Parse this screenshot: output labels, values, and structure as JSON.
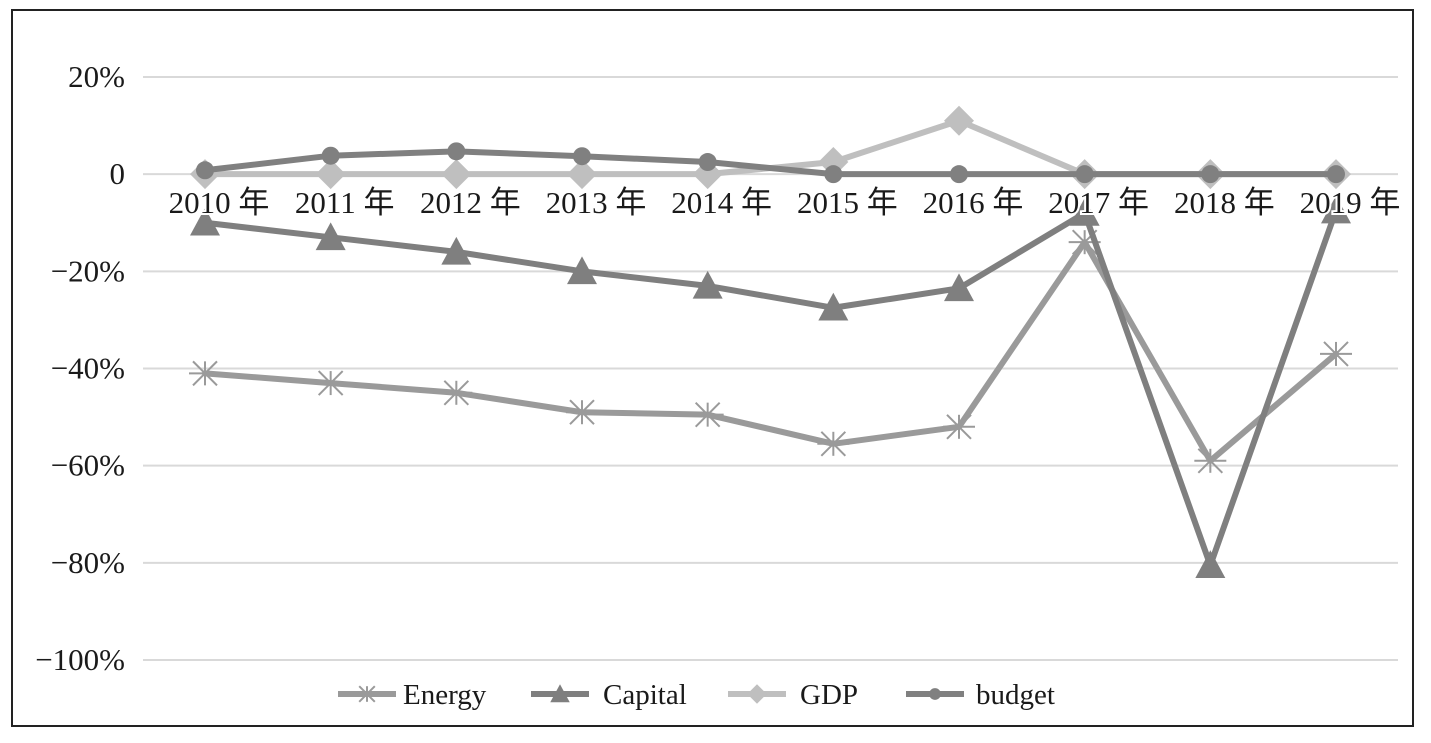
{
  "chart_data": {
    "type": "line",
    "title": "",
    "xlabel": "",
    "ylabel": "",
    "categories": [
      "2010 年",
      "2011 年",
      "2012 年",
      "2013 年",
      "2014 年",
      "2015 年",
      "2016 年",
      "2017 年",
      "2018 年",
      "2019 年"
    ],
    "ylim": [
      -100,
      20
    ],
    "yticks": [
      20,
      0,
      -20,
      -40,
      -60,
      -80,
      -100
    ],
    "ytick_labels": [
      "20%",
      "0",
      "−20%",
      "−40%",
      "−60%",
      "−80%",
      "−100%"
    ],
    "grid": "horizontal",
    "legend_position": "bottom",
    "series": [
      {
        "name": "Energy",
        "marker": "star",
        "color": "#9a9a9a",
        "values": [
          -41,
          -43,
          -45,
          -49,
          -49.5,
          -55.5,
          -52,
          -14,
          -59,
          -37
        ]
      },
      {
        "name": "Capital",
        "marker": "triangle",
        "color": "#7f7f7f",
        "values": [
          -10,
          -13,
          -16,
          -20,
          -23,
          -27.5,
          -23.5,
          -8,
          -80.5,
          -7.5
        ]
      },
      {
        "name": "GDP",
        "marker": "diamond",
        "color": "#bfbfbf",
        "values": [
          0,
          0,
          0,
          0,
          0,
          2.5,
          11,
          0,
          0,
          0
        ]
      },
      {
        "name": "budget",
        "marker": "circle",
        "color": "#808080",
        "values": [
          0.8,
          3.8,
          4.7,
          3.7,
          2.5,
          0,
          0,
          0,
          0,
          0
        ]
      }
    ]
  }
}
